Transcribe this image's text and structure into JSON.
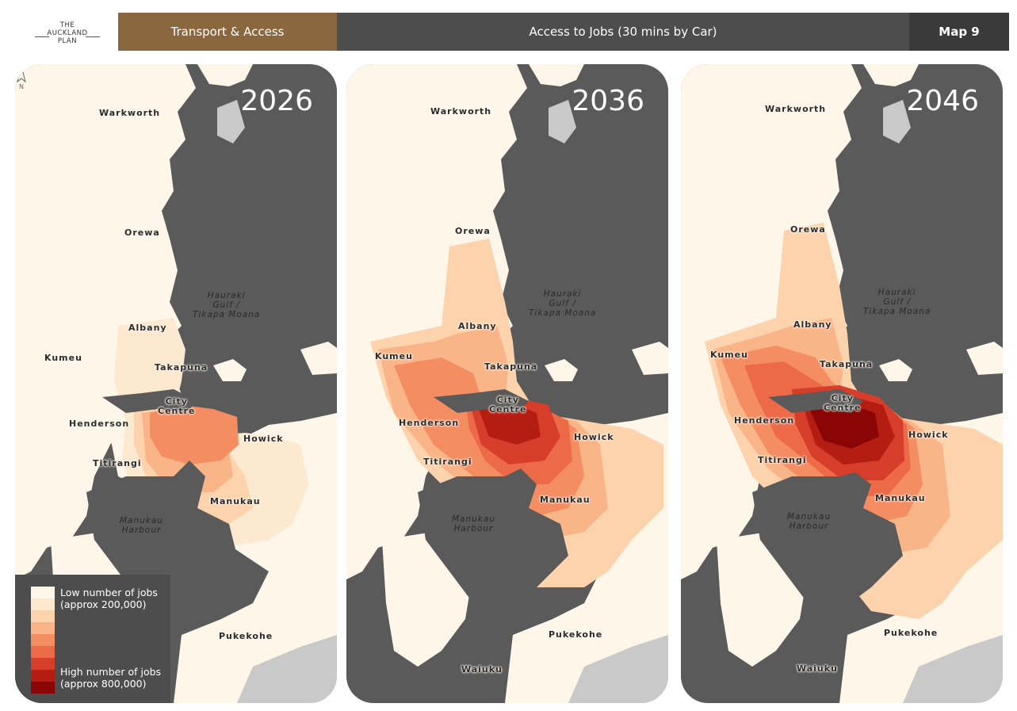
{
  "logo": {
    "line1": "THE",
    "line2": "AUCKLAND",
    "line3": "PLAN"
  },
  "header": {
    "theme": "Transport & Access",
    "title": "Access to Jobs (30 mins by Car)",
    "map_number": "Map 9"
  },
  "colors": {
    "theme_bar": "#8a673f",
    "title_bar": "#4d4d4d",
    "water": "#5a5a5a",
    "land": "#fff6ea",
    "scale": [
      "#fff6ea",
      "#fde8d0",
      "#fcd3ac",
      "#f9b588",
      "#f58d63",
      "#ec6a48",
      "#d63d2a",
      "#b51d12",
      "#8a0606"
    ]
  },
  "legend": {
    "low_label": "Low number of jobs",
    "low_value": "(approx 200,000)",
    "high_label": "High number of jobs",
    "high_value": "(approx 800,000)"
  },
  "north_label": "N",
  "panels": [
    {
      "year": "2026",
      "places": {
        "warkworth": "Warkworth",
        "orewa": "Orewa",
        "albany": "Albany",
        "kumeu": "Kumeu",
        "takapuna": "Takapuna",
        "city_centre": "City\nCentre",
        "henderson": "Henderson",
        "howick": "Howick",
        "titirangi": "Titirangi",
        "manukau": "Manukau",
        "pukekohe": "Pukekohe"
      },
      "water_labels": {
        "gulf": "Hauraki\nGulf /\nTikapa Moana",
        "harbour": "Manukau\nHarbour"
      },
      "access_level": "low"
    },
    {
      "year": "2036",
      "places": {
        "warkworth": "Warkworth",
        "orewa": "Orewa",
        "albany": "Albany",
        "kumeu": "Kumeu",
        "takapuna": "Takapuna",
        "city_centre": "City\nCentre",
        "henderson": "Henderson",
        "howick": "Howick",
        "titirangi": "Titirangi",
        "manukau": "Manukau",
        "pukekohe": "Pukekohe",
        "waiuku": "Waiuku"
      },
      "water_labels": {
        "gulf": "Hauraki\nGulf /\nTikapa Moana",
        "harbour": "Manukau\nHarbour"
      },
      "access_level": "medium"
    },
    {
      "year": "2046",
      "places": {
        "warkworth": "Warkworth",
        "orewa": "Orewa",
        "albany": "Albany",
        "kumeu": "Kumeu",
        "takapuna": "Takapuna",
        "city_centre": "City\nCentre",
        "henderson": "Henderson",
        "howick": "Howick",
        "titirangi": "Titirangi",
        "manukau": "Manukau",
        "pukekohe": "Pukekohe",
        "waiuku": "Waiuku"
      },
      "water_labels": {
        "gulf": "Hauraki\nGulf /\nTikapa Moana",
        "harbour": "Manukau\nHarbour"
      },
      "access_level": "high"
    }
  ]
}
